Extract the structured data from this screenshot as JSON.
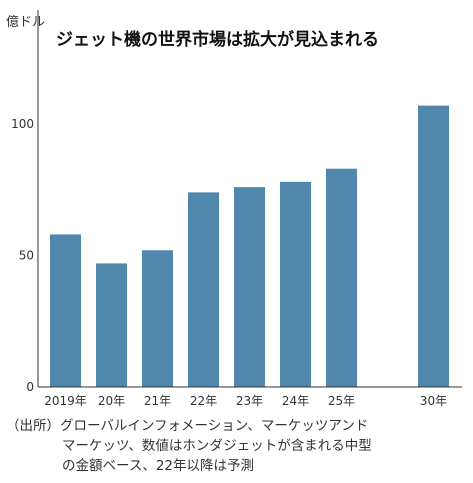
{
  "chart_data": {
    "type": "bar",
    "title": "ジェット機の世界市場は拡大が見込まれる",
    "ylabel": "億ドル",
    "xlabel": "",
    "ylim": [
      0,
      120
    ],
    "yticks": [
      0,
      50,
      100
    ],
    "grid": false,
    "categories": [
      "2019年",
      "20年",
      "21年",
      "22年",
      "23年",
      "24年",
      "25年",
      "30年"
    ],
    "values": [
      58,
      47,
      52,
      74,
      76,
      78,
      83,
      107
    ],
    "colors": {
      "bar": "#4f87ad",
      "axis": "#333333"
    }
  },
  "source": {
    "line1": "（出所）グローバルインフォメーション、マーケッツアンド",
    "line2": "マーケッツ、数値はホンダジェットが含まれる中型",
    "line3": "の金額ベース、22年以降は予測"
  }
}
